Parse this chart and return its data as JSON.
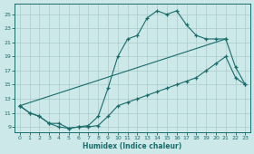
{
  "xlabel": "Humidex (Indice chaleur)",
  "bg_color": "#cce8e8",
  "line_color": "#1a6b6b",
  "grid_color": "#aacccc",
  "xlim": [
    -0.5,
    23.5
  ],
  "ylim": [
    8.2,
    26.5
  ],
  "xticks": [
    0,
    1,
    2,
    3,
    4,
    5,
    6,
    7,
    8,
    9,
    10,
    11,
    12,
    13,
    14,
    15,
    16,
    17,
    18,
    19,
    20,
    21,
    22,
    23
  ],
  "yticks": [
    9,
    11,
    13,
    15,
    17,
    19,
    21,
    23,
    25
  ],
  "line1_x": [
    0,
    1,
    2,
    3,
    4,
    5,
    6,
    7,
    8,
    9,
    10,
    11,
    12,
    13,
    14,
    15,
    16,
    17,
    18,
    19,
    20,
    21,
    22,
    23
  ],
  "line1_y": [
    12,
    11,
    10.5,
    9.5,
    9.5,
    8.8,
    9.0,
    9.0,
    9.2,
    10.5,
    12,
    12.5,
    13,
    13.5,
    14,
    14.5,
    15,
    15.5,
    16,
    17,
    18,
    19,
    16,
    15
  ],
  "line2_x": [
    0,
    1,
    2,
    3,
    4,
    5,
    6,
    7,
    8,
    9,
    10,
    11,
    12,
    13,
    14,
    15,
    16,
    17,
    18,
    19,
    20,
    21
  ],
  "line2_y": [
    12,
    11,
    10.5,
    9.5,
    9.0,
    8.8,
    9.0,
    9.2,
    10.5,
    14.5,
    19,
    21.5,
    22,
    24.5,
    25.5,
    25,
    25.5,
    23.5,
    22,
    21.5,
    21.5,
    21.5
  ],
  "line3_x": [
    0,
    21,
    22,
    23
  ],
  "line3_y": [
    12,
    21.5,
    17.5,
    15
  ]
}
